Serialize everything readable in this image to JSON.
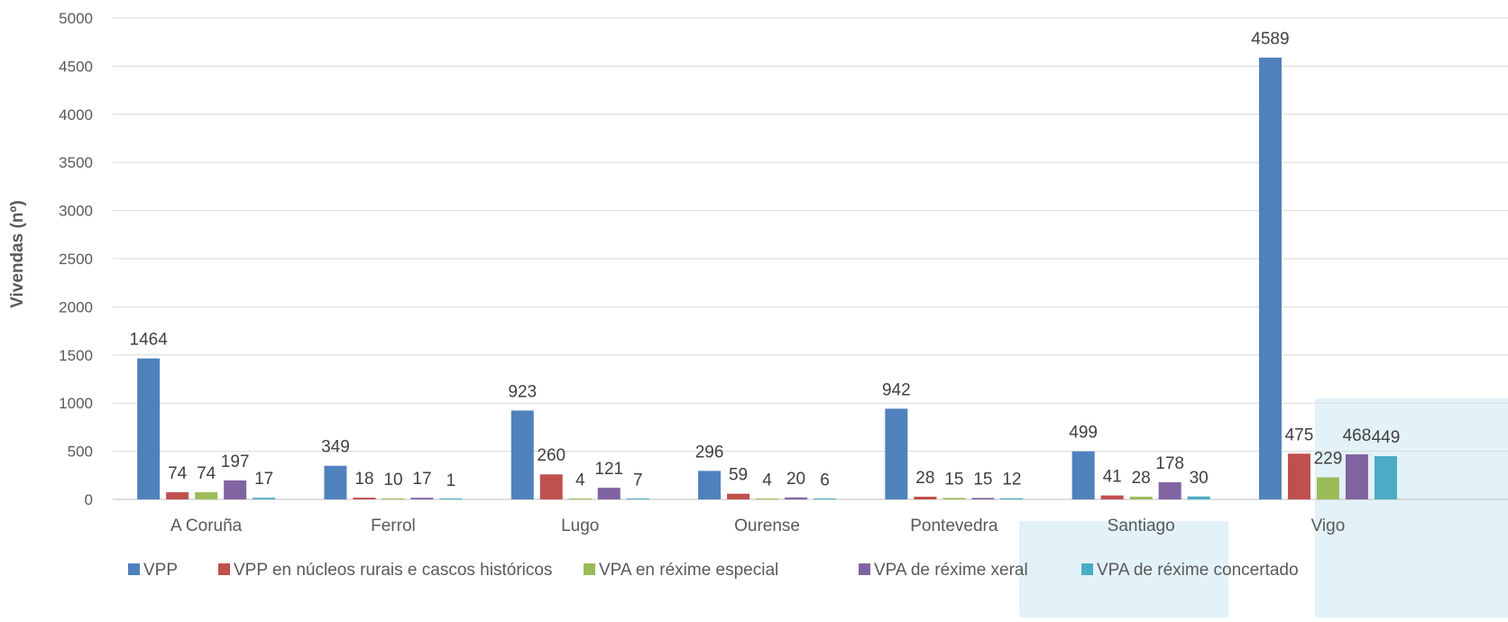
{
  "chart_data": {
    "type": "bar",
    "title": "",
    "xlabel": "",
    "ylabel": "Vivendas (nº)",
    "ylim": [
      0,
      5000
    ],
    "ytick_step": 500,
    "grid": true,
    "legend_position": "bottom",
    "categories": [
      "A Coruña",
      "Ferrol",
      "Lugo",
      "Ourense",
      "Pontevedra",
      "Santiago",
      "Vigo"
    ],
    "series": [
      {
        "name": "VPP",
        "color": "#4f81bd",
        "values": [
          1464,
          349,
          923,
          296,
          942,
          499,
          4589
        ]
      },
      {
        "name": "VPP en núcleos rurais e cascos históricos",
        "color": "#c0504d",
        "values": [
          74,
          18,
          260,
          59,
          28,
          41,
          475
        ]
      },
      {
        "name": "VPA en réxime especial",
        "color": "#9bbb59",
        "values": [
          74,
          10,
          4,
          4,
          15,
          28,
          229
        ]
      },
      {
        "name": "VPA de réxime xeral",
        "color": "#8064a2",
        "values": [
          197,
          17,
          121,
          20,
          15,
          178,
          468
        ]
      },
      {
        "name": "VPA de réxime concertado",
        "color": "#4bacc6",
        "values": [
          17,
          1,
          7,
          6,
          12,
          30,
          449
        ]
      }
    ]
  }
}
